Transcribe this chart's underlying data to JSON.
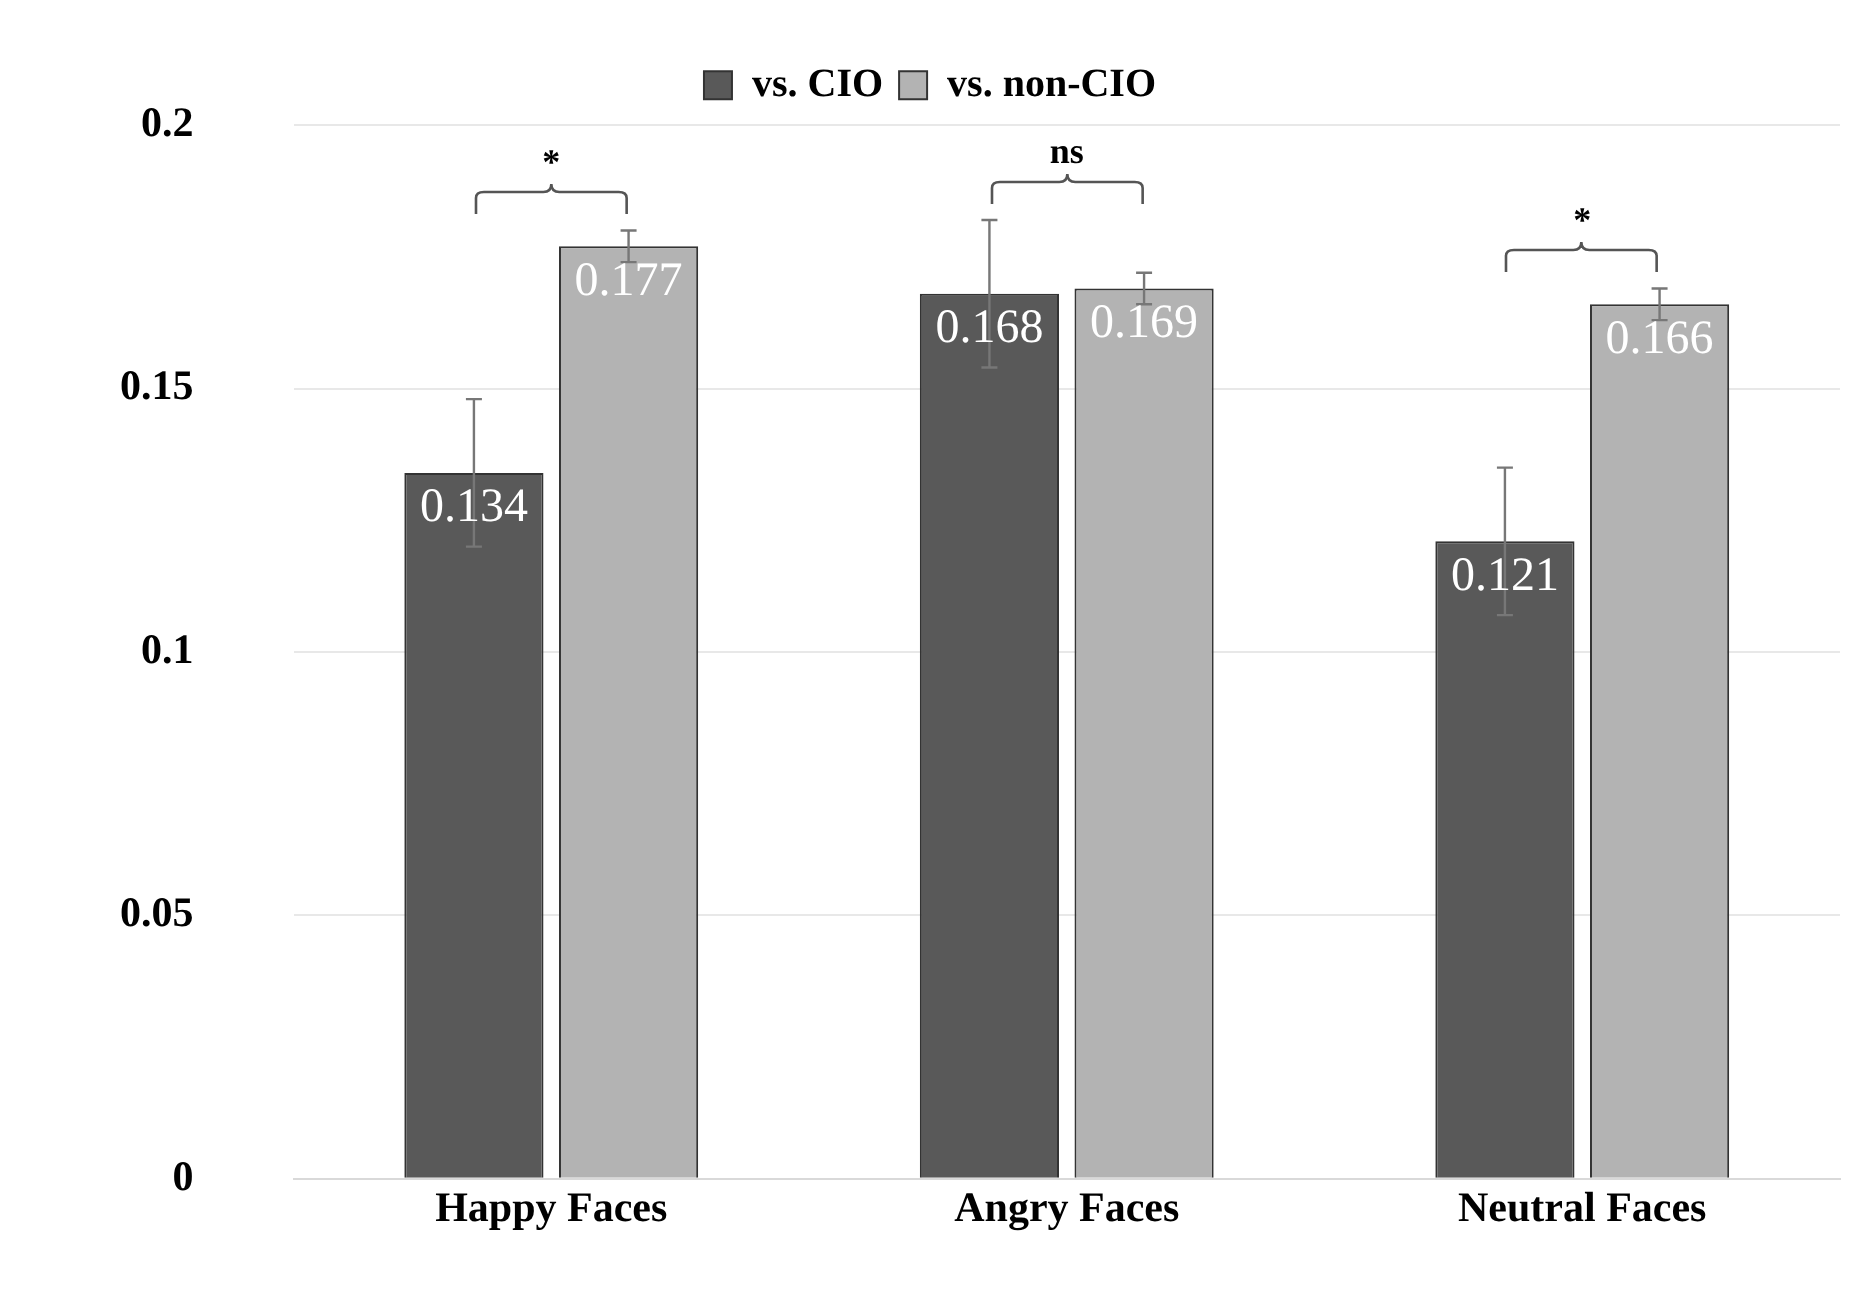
{
  "chart_data": {
    "type": "bar",
    "categories": [
      "Happy Faces",
      "Angry Faces",
      "Neutral Faces"
    ],
    "series": [
      {
        "name": "vs. CIO",
        "color": "#595959",
        "values": [
          0.134,
          0.168,
          0.121
        ],
        "errors": [
          0.014,
          0.014,
          0.014
        ]
      },
      {
        "name": "vs. non-CIO",
        "color": "#b3b3b3",
        "values": [
          0.177,
          0.169,
          0.166
        ],
        "errors": [
          0.003,
          0.003,
          0.003
        ]
      }
    ],
    "ylim": [
      0,
      0.2
    ],
    "yticks": [
      0,
      0.05,
      0.1,
      0.15,
      {
        "value": 0.2,
        "label": "0.2"
      }
    ],
    "grid": "y",
    "legend": "top",
    "data_labels": true,
    "annotations": [
      "*",
      "ns",
      "*"
    ]
  }
}
